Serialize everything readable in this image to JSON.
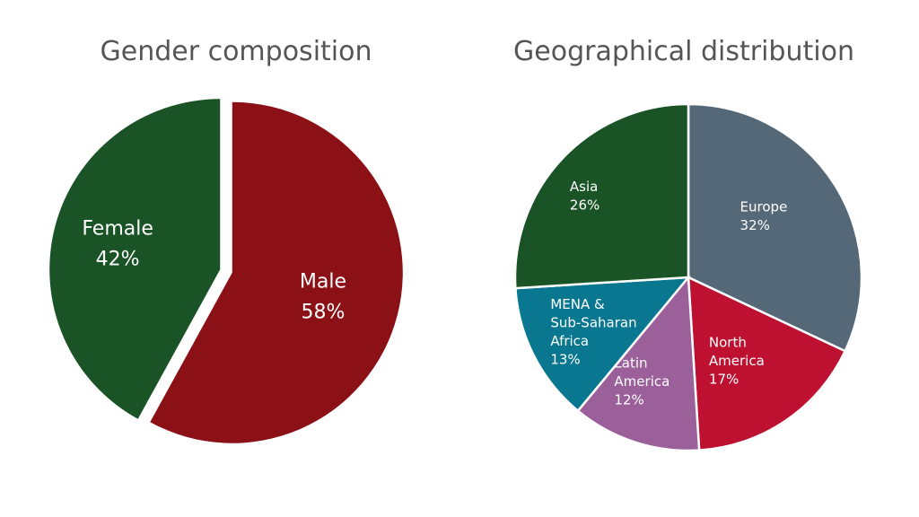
{
  "chart_data": [
    {
      "type": "pie",
      "title": "Gender composition",
      "exploded": true,
      "slices": [
        {
          "label": "Male",
          "percent_label": "58%",
          "value": 58,
          "color": "#8B1117"
        },
        {
          "label": "Female",
          "percent_label": "42%",
          "value": 42,
          "color": "#1A5326"
        }
      ]
    },
    {
      "type": "pie",
      "title": "Geographical distribution",
      "exploded": false,
      "slices": [
        {
          "label": "Europe",
          "percent_label": "32%",
          "value": 32,
          "color": "#546878"
        },
        {
          "label": "North America",
          "percent_label": "17%",
          "value": 17,
          "color": "#BE1131"
        },
        {
          "label": "Latin America",
          "percent_label": "12%",
          "value": 12,
          "color": "#9B5F9A"
        },
        {
          "label": "MENA & Sub-Saharan Africa",
          "percent_label": "13%",
          "value": 13,
          "color": "#0A7791"
        },
        {
          "label": "Asia",
          "percent_label": "26%",
          "value": 26,
          "color": "#1A5326"
        }
      ]
    }
  ]
}
